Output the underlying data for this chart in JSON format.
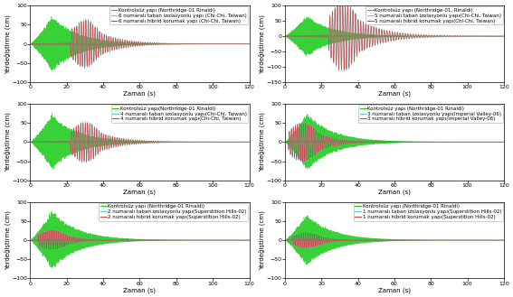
{
  "subplots": [
    {
      "legend": [
        "Kontrolsüz yapı (Northridge-01 Rinaldi)",
        "6 numaralı taban izolasyonlu yapı (Chi-Chi, Taiwan)",
        "6 numaralı hibrid korumak yapı (Chi-Chi, Taiwan)"
      ],
      "ylim": [
        -100,
        100
      ],
      "yticks": [
        -100,
        -50,
        0,
        50,
        100
      ],
      "colors": [
        "#22cc22",
        "#66cccc",
        "#cc4444"
      ],
      "green_peak_time": 12,
      "green_peak_amp": 75,
      "green_freq": 2.5,
      "green_decay": 0.07,
      "cyan_peak_time": 30,
      "cyan_peak_amp": 65,
      "cyan_freq": 0.8,
      "cyan_decay": 0.08,
      "red_scale": 0.95
    },
    {
      "legend": [
        "Kontrolsüz yapı (Northridge-01, Rinaldi)",
        "5 numaralı taban izolasyonlu yapı(Chi-Chi, Taiwan)",
        "5 numaralı hibrid korumak yapı(Chi-Chi, Taiwan)"
      ],
      "ylim": [
        -150,
        100
      ],
      "yticks": [
        -150,
        -100,
        -50,
        0,
        50,
        100
      ],
      "colors": [
        "#22cc22",
        "#66cccc",
        "#cc4444"
      ],
      "green_peak_time": 12,
      "green_peak_amp": 70,
      "green_freq": 2.5,
      "green_decay": 0.07,
      "cyan_peak_time": 32,
      "cyan_peak_amp": 120,
      "cyan_freq": 0.7,
      "cyan_decay": 0.07,
      "red_scale": 0.95
    },
    {
      "legend": [
        "Kontrolsüz yapı(Northridge-01 Rinaldi)",
        "4 numaralı taban izolasyonlu yapı(Chi-Chi, Taiwan)",
        "4 numaralı hibrid korumak yapı(Chi-Chi, Taiwan)"
      ],
      "ylim": [
        -100,
        100
      ],
      "yticks": [
        -100,
        -50,
        0,
        50,
        100
      ],
      "colors": [
        "#22cc22",
        "#66cccc",
        "#cc4444"
      ],
      "green_peak_time": 12,
      "green_peak_amp": 75,
      "green_freq": 2.5,
      "green_decay": 0.07,
      "cyan_peak_time": 30,
      "cyan_peak_amp": 55,
      "cyan_freq": 0.8,
      "cyan_decay": 0.08,
      "red_scale": 0.95
    },
    {
      "legend": [
        "Kontrolsüz yapı (Northridge-01 Rinaldi)",
        "3 numaralı taban izolasyonlu yapı(Imperial Valley-06)",
        "3 numaralı hibrid korumak yapı(Imperial Valley-06)"
      ],
      "ylim": [
        -100,
        100
      ],
      "yticks": [
        -100,
        -50,
        0,
        50,
        100
      ],
      "colors": [
        "#22cc22",
        "#66cccc",
        "#cc4444"
      ],
      "green_peak_time": 12,
      "green_peak_amp": 80,
      "green_freq": 2.5,
      "green_decay": 0.07,
      "cyan_peak_time": 10,
      "cyan_peak_amp": 55,
      "cyan_freq": 0.9,
      "cyan_decay": 0.1,
      "red_scale": 0.95
    },
    {
      "legend": [
        "Kontrolsüz yapı (Northridge-01 Rinaldi)",
        "2 numaralı taban izolasyonlu yapı(Superstition Hills-02)",
        "2 numaralı hibrid korumak yapı(Superstition Hills-02)"
      ],
      "ylim": [
        -100,
        100
      ],
      "yticks": [
        -100,
        -50,
        0,
        50,
        100
      ],
      "colors": [
        "#22cc22",
        "#66cccc",
        "#cc4444"
      ],
      "green_peak_time": 12,
      "green_peak_amp": 80,
      "green_freq": 2.5,
      "green_decay": 0.07,
      "cyan_peak_time": 12,
      "cyan_peak_amp": 28,
      "cyan_freq": 1.0,
      "cyan_decay": 0.12,
      "red_scale": 0.95
    },
    {
      "legend": [
        "Kontrolsüz yapı (Northridge-01 Rinaldi)",
        "1 numaralı taban izolasyonlu yapı(Superstition Hills-02)",
        "1 numaralı hibrid korumak yapı(Superstition Hills-02)"
      ],
      "ylim": [
        -100,
        100
      ],
      "yticks": [
        -100,
        -50,
        0,
        50,
        100
      ],
      "colors": [
        "#22cc22",
        "#66cccc",
        "#cc4444"
      ],
      "green_peak_time": 12,
      "green_peak_amp": 70,
      "green_freq": 2.5,
      "green_decay": 0.07,
      "cyan_peak_time": 12,
      "cyan_peak_amp": 22,
      "cyan_freq": 1.0,
      "cyan_decay": 0.14,
      "red_scale": 0.95
    }
  ],
  "xlabel": "Zaman (s)",
  "ylabel": "Yerdeğiştirme (cm)",
  "xlim": [
    0,
    120
  ],
  "xticks": [
    0,
    20,
    40,
    60,
    80,
    100,
    120
  ],
  "background_color": "#ffffff",
  "legend_fontsize": 4.0,
  "axis_fontsize": 5.0,
  "tick_fontsize": 4.5
}
